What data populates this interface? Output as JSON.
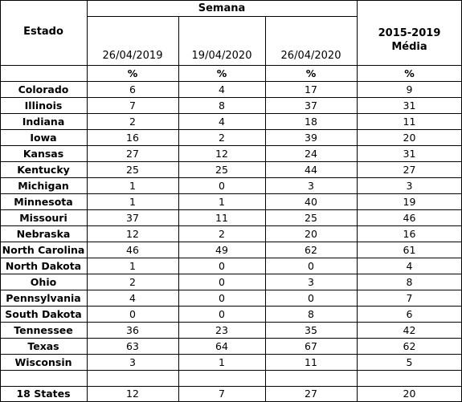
{
  "table": {
    "state_header": "Estado",
    "week_header": "Semana",
    "col_dates": [
      "26/04/2019",
      "19/04/2020",
      "26/04/2020"
    ],
    "avg_header_line1": "2015-2019",
    "avg_header_line2": "Média",
    "unit": "%",
    "rows": [
      {
        "state": "Colorado",
        "values": [
          "6",
          "4",
          "17",
          "9"
        ]
      },
      {
        "state": "Illinois",
        "values": [
          "7",
          "8",
          "37",
          "31"
        ]
      },
      {
        "state": "Indiana",
        "values": [
          "2",
          "4",
          "18",
          "11"
        ]
      },
      {
        "state": "Iowa",
        "values": [
          "16",
          "2",
          "39",
          "20"
        ]
      },
      {
        "state": "Kansas",
        "values": [
          "27",
          "12",
          "24",
          "31"
        ]
      },
      {
        "state": "Kentucky",
        "values": [
          "25",
          "25",
          "44",
          "27"
        ]
      },
      {
        "state": "Michigan",
        "values": [
          "1",
          "0",
          "3",
          "3"
        ]
      },
      {
        "state": "Minnesota",
        "values": [
          "1",
          "1",
          "40",
          "19"
        ]
      },
      {
        "state": "Missouri",
        "values": [
          "37",
          "11",
          "25",
          "46"
        ]
      },
      {
        "state": "Nebraska",
        "values": [
          "12",
          "2",
          "20",
          "16"
        ]
      },
      {
        "state": "North Carolina",
        "values": [
          "46",
          "49",
          "62",
          "61"
        ]
      },
      {
        "state": "North Dakota",
        "values": [
          "1",
          "0",
          "0",
          "4"
        ]
      },
      {
        "state": "Ohio",
        "values": [
          "2",
          "0",
          "3",
          "8"
        ]
      },
      {
        "state": "Pennsylvania",
        "values": [
          "4",
          "0",
          "0",
          "7"
        ]
      },
      {
        "state": "South Dakota",
        "values": [
          "0",
          "0",
          "8",
          "6"
        ]
      },
      {
        "state": "Tennessee",
        "values": [
          "36",
          "23",
          "35",
          "42"
        ]
      },
      {
        "state": "Texas",
        "values": [
          "63",
          "64",
          "67",
          "62"
        ]
      },
      {
        "state": "Wisconsin",
        "values": [
          "3",
          "1",
          "11",
          "5"
        ]
      }
    ],
    "total": {
      "state": "18 States",
      "values": [
        "12",
        "7",
        "27",
        "20"
      ]
    }
  }
}
